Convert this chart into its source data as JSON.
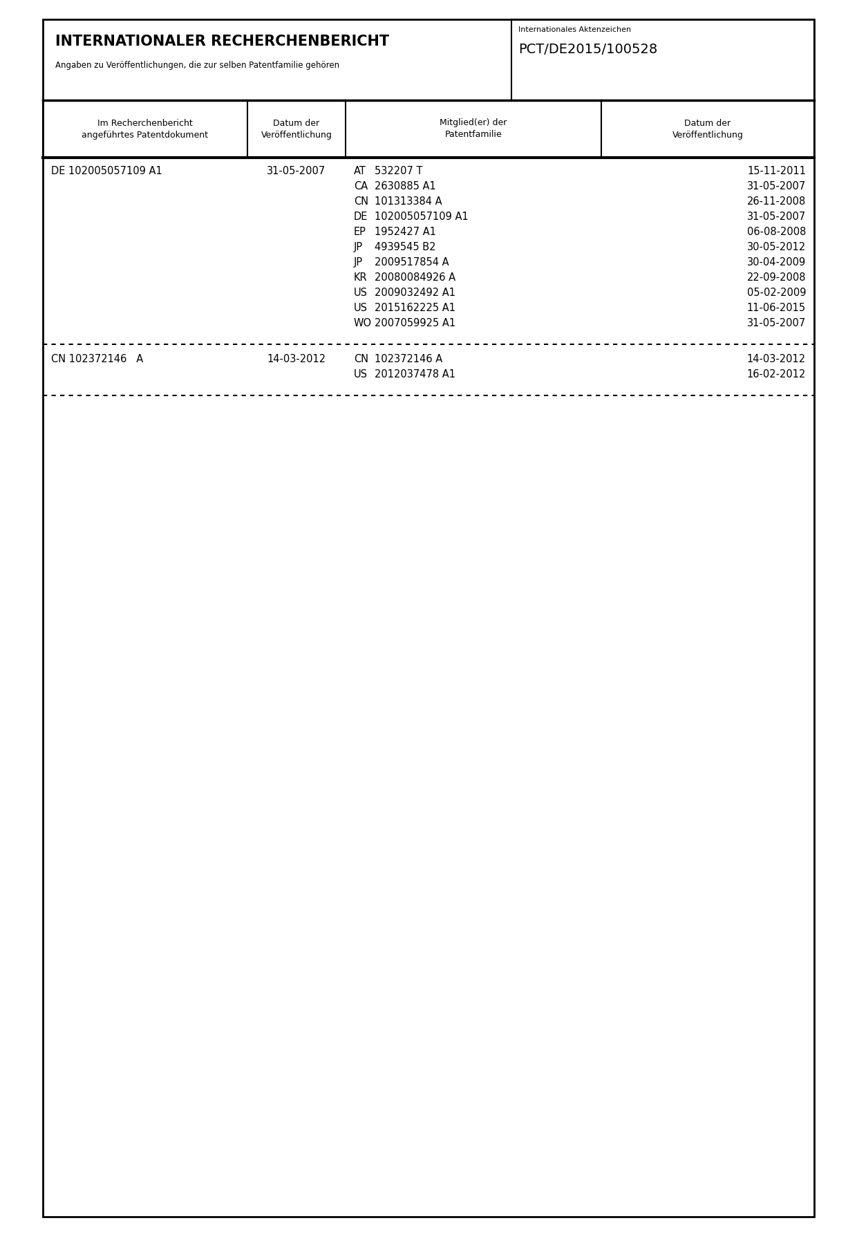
{
  "title": "INTERNATIONALER RECHERCHENBERICHT",
  "subtitle": "Angaben zu Veröffentlichungen, die zur selben Patentfamilie gehören",
  "aktenzeichen_label": "Internationales Aktenzeichen",
  "aktenzeichen_value": "PCT/DE2015/100528",
  "col_headers": [
    "Im Recherchenbericht\nangeführtes Patentdokument",
    "Datum der\nVeröffentlichung",
    "Mitglied(er) der\nPatentfamilie",
    "Datum der\nVeröffentlichung"
  ],
  "entries": [
    {
      "doc": "DE 102005057109 A1",
      "doc_date": "31-05-2007",
      "members": [
        [
          "AT",
          "532207 T",
          "15-11-2011"
        ],
        [
          "CA",
          "2630885 A1",
          "31-05-2007"
        ],
        [
          "CN",
          "101313384 A",
          "26-11-2008"
        ],
        [
          "DE",
          "102005057109 A1",
          "31-05-2007"
        ],
        [
          "EP",
          "1952427 A1",
          "06-08-2008"
        ],
        [
          "JP",
          "4939545 B2",
          "30-05-2012"
        ],
        [
          "JP",
          "2009517854 A",
          "30-04-2009"
        ],
        [
          "KR",
          "20080084926 A",
          "22-09-2008"
        ],
        [
          "US",
          "2009032492 A1",
          "05-02-2009"
        ],
        [
          "US",
          "2015162225 A1",
          "11-06-2015"
        ],
        [
          "WO",
          "2007059925 A1",
          "31-05-2007"
        ]
      ]
    },
    {
      "doc": "CN 102372146   A",
      "doc_date": "14-03-2012",
      "members": [
        [
          "CN",
          "102372146 A",
          "14-03-2012"
        ],
        [
          "US",
          "2012037478 A1",
          "16-02-2012"
        ]
      ]
    }
  ],
  "bg_color": "#ffffff",
  "text_color": "#000000",
  "border_color": "#000000"
}
